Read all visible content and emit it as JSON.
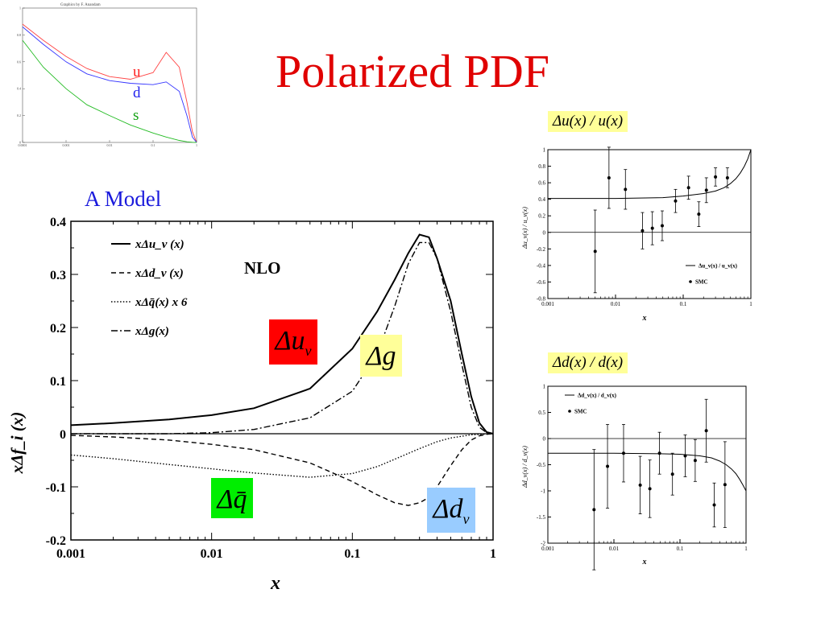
{
  "slide": {
    "title": "Polarized PDF",
    "model_label": "A Model",
    "ratio_u_title": "Δu(x) / u(x)",
    "ratio_d_title": "Δd(x) / d(x)",
    "label_du": "Δu",
    "label_du_sub": "v",
    "label_dg": "Δg",
    "label_dq": "Δq̄",
    "label_dd": "Δd",
    "label_dd_sub": "v"
  },
  "colors": {
    "title": "#e00000",
    "model_label": "#1a1adc",
    "du_box": "#ff0000",
    "dg_box": "#ffff99",
    "dq_box": "#00ee00",
    "dd_box": "#99ccff",
    "u_curve": "#ff4444",
    "d_curve": "#3333ff",
    "s_curve": "#22bb22"
  },
  "chart_data": [
    {
      "id": "main",
      "type": "line",
      "title": "",
      "annotation": "NLO",
      "xlabel": "x",
      "ylabel": "xΔf_i (x)",
      "xscale": "log",
      "xlim": [
        0.001,
        1
      ],
      "ylim": [
        -0.2,
        0.4
      ],
      "xticks": [
        "0.001",
        "0.01",
        "0.1",
        "1"
      ],
      "yticks": [
        "0.4",
        "0.3",
        "0.2",
        "0.1",
        "0",
        "-0.1",
        "-0.2"
      ],
      "legend_position": "top-left",
      "series": [
        {
          "name": "xΔu_v (x)",
          "style": "solid",
          "x": [
            0.001,
            0.002,
            0.005,
            0.01,
            0.02,
            0.05,
            0.1,
            0.15,
            0.2,
            0.25,
            0.3,
            0.35,
            0.4,
            0.5,
            0.6,
            0.7,
            0.8,
            0.9,
            1.0
          ],
          "y": [
            0.016,
            0.02,
            0.027,
            0.035,
            0.048,
            0.085,
            0.16,
            0.23,
            0.29,
            0.34,
            0.375,
            0.37,
            0.33,
            0.25,
            0.15,
            0.07,
            0.02,
            0.003,
            0.0
          ]
        },
        {
          "name": "xΔd_v (x)",
          "style": "dashed",
          "x": [
            0.001,
            0.002,
            0.005,
            0.01,
            0.02,
            0.05,
            0.1,
            0.15,
            0.2,
            0.25,
            0.3,
            0.35,
            0.4,
            0.5,
            0.6,
            0.7,
            0.8,
            0.9,
            1.0
          ],
          "y": [
            -0.003,
            -0.006,
            -0.012,
            -0.02,
            -0.03,
            -0.055,
            -0.09,
            -0.115,
            -0.13,
            -0.135,
            -0.13,
            -0.12,
            -0.1,
            -0.06,
            -0.03,
            -0.012,
            -0.004,
            -0.001,
            0.0
          ]
        },
        {
          "name": "xΔq̄(x) x 6",
          "style": "dotted",
          "x": [
            0.001,
            0.002,
            0.005,
            0.01,
            0.02,
            0.05,
            0.1,
            0.15,
            0.2,
            0.3,
            0.4,
            0.5,
            0.7,
            1.0
          ],
          "y": [
            -0.04,
            -0.047,
            -0.058,
            -0.066,
            -0.074,
            -0.082,
            -0.075,
            -0.062,
            -0.048,
            -0.028,
            -0.015,
            -0.008,
            -0.002,
            0.0
          ]
        },
        {
          "name": "xΔg(x)",
          "style": "dash-dot",
          "x": [
            0.001,
            0.002,
            0.005,
            0.01,
            0.02,
            0.05,
            0.1,
            0.15,
            0.2,
            0.25,
            0.3,
            0.35,
            0.4,
            0.5,
            0.6,
            0.7,
            0.8,
            0.9,
            1.0
          ],
          "y": [
            0.0,
            0.0,
            0.0,
            0.002,
            0.008,
            0.03,
            0.08,
            0.15,
            0.24,
            0.32,
            0.36,
            0.36,
            0.33,
            0.23,
            0.13,
            0.05,
            0.012,
            0.002,
            0.0
          ]
        }
      ]
    },
    {
      "id": "ratio-u",
      "type": "scatter",
      "xlabel": "x",
      "ylabel": "Δu_v(x) / u_v(x)",
      "xscale": "log",
      "xlim": [
        0.001,
        1
      ],
      "ylim": [
        -0.8,
        1
      ],
      "xticks": [
        "0.001",
        "0.01",
        "0.1",
        "1"
      ],
      "yticks": [
        "1",
        "0.8",
        "0.6",
        "0.4",
        "0.2",
        "0",
        "-0.2",
        "-0.4",
        "-0.6",
        "-0.8"
      ],
      "legend_position": "bottom-right",
      "curve": {
        "name": "Δu_v(x) / u_v(x)",
        "x": [
          0.001,
          0.01,
          0.05,
          0.1,
          0.2,
          0.3,
          0.4,
          0.5,
          0.6,
          0.7,
          0.8,
          0.9,
          1.0
        ],
        "y": [
          0.41,
          0.41,
          0.42,
          0.44,
          0.47,
          0.5,
          0.54,
          0.59,
          0.65,
          0.72,
          0.8,
          0.89,
          1.0
        ]
      },
      "points": {
        "name": "SMC",
        "x": [
          0.005,
          0.008,
          0.014,
          0.025,
          0.035,
          0.049,
          0.077,
          0.12,
          0.17,
          0.22,
          0.3,
          0.45
        ],
        "y": [
          -0.23,
          0.66,
          0.52,
          0.02,
          0.05,
          0.08,
          0.38,
          0.54,
          0.22,
          0.51,
          0.67,
          0.66
        ],
        "err": [
          0.5,
          0.37,
          0.24,
          0.22,
          0.2,
          0.18,
          0.14,
          0.14,
          0.15,
          0.15,
          0.11,
          0.12
        ]
      }
    },
    {
      "id": "ratio-d",
      "type": "scatter",
      "xlabel": "x",
      "ylabel": "Δd_v(x) / d_v(x)",
      "xscale": "log",
      "xlim": [
        0.001,
        1
      ],
      "ylim": [
        -2,
        1
      ],
      "xticks": [
        "0.001",
        "0.01",
        "0.1",
        "1"
      ],
      "yticks": [
        "1",
        "0.5",
        "0",
        "-0.5",
        "-1",
        "-1.5",
        "-2"
      ],
      "legend_position": "top-left",
      "curve": {
        "name": "Δd_v(x) / d_v(x)",
        "x": [
          0.001,
          0.01,
          0.05,
          0.1,
          0.2,
          0.3,
          0.4,
          0.5,
          0.6,
          0.7,
          0.8,
          0.9,
          1.0
        ],
        "y": [
          -0.28,
          -0.28,
          -0.29,
          -0.3,
          -0.33,
          -0.37,
          -0.43,
          -0.5,
          -0.58,
          -0.67,
          -0.78,
          -0.89,
          -1.0
        ]
      },
      "points": {
        "name": "SMC",
        "x": [
          0.005,
          0.008,
          0.014,
          0.025,
          0.035,
          0.049,
          0.077,
          0.12,
          0.17,
          0.25,
          0.33,
          0.48
        ],
        "y": [
          -1.36,
          -0.53,
          -0.28,
          -0.89,
          -0.96,
          -0.28,
          -0.68,
          -0.33,
          -0.42,
          0.15,
          -1.27,
          -0.88
        ],
        "err": [
          1.15,
          0.8,
          0.55,
          0.55,
          0.55,
          0.4,
          0.4,
          0.4,
          0.4,
          0.6,
          0.42,
          0.82
        ]
      }
    },
    {
      "id": "thumb",
      "type": "line",
      "title": "Graphics by F. Anandam",
      "xscale": "log",
      "xlim": [
        0.0001,
        1
      ],
      "ylim": [
        0,
        1
      ],
      "xticks": [
        "0.0001",
        "0.001",
        "0.01",
        "0.1",
        "1"
      ],
      "yticks": [
        "1",
        "0.8",
        "0.6",
        "0.4",
        "0.2",
        "0"
      ],
      "series": [
        {
          "name": "u",
          "color": "#ff4444",
          "x": [
            0.0001,
            0.0003,
            0.001,
            0.003,
            0.01,
            0.03,
            0.1,
            0.2,
            0.4,
            0.6,
            0.8,
            1.0
          ],
          "y": [
            0.88,
            0.76,
            0.64,
            0.55,
            0.49,
            0.47,
            0.52,
            0.67,
            0.56,
            0.3,
            0.08,
            0.0
          ]
        },
        {
          "name": "d",
          "color": "#3333ff",
          "x": [
            0.0001,
            0.0003,
            0.001,
            0.003,
            0.01,
            0.03,
            0.1,
            0.2,
            0.4,
            0.6,
            0.8,
            1.0
          ],
          "y": [
            0.86,
            0.73,
            0.6,
            0.51,
            0.46,
            0.44,
            0.43,
            0.45,
            0.38,
            0.2,
            0.04,
            0.0
          ]
        },
        {
          "name": "s",
          "color": "#22bb22",
          "x": [
            0.0001,
            0.0003,
            0.001,
            0.003,
            0.01,
            0.03,
            0.1,
            0.2,
            0.4,
            0.6,
            0.8,
            1.0
          ],
          "y": [
            0.76,
            0.56,
            0.4,
            0.28,
            0.2,
            0.13,
            0.07,
            0.04,
            0.015,
            0.005,
            0.001,
            0.0
          ]
        }
      ]
    }
  ]
}
